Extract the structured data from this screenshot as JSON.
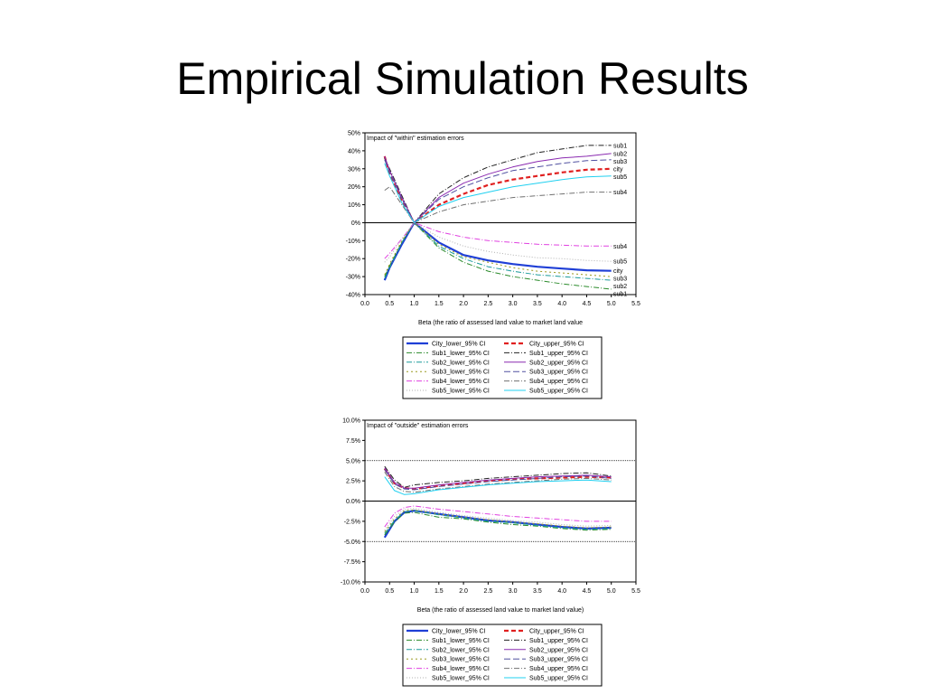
{
  "slide": {
    "title": "Empirical Simulation Results"
  },
  "chart_data": [
    {
      "type": "line",
      "title": "Impact of \"within\" estimation errors",
      "xlabel": "Beta (the ratio of assessed land value to market land value",
      "ylabel": "",
      "xlim": [
        0.0,
        5.5
      ],
      "ylim": [
        -0.4,
        0.5
      ],
      "x_ticks": [
        "0.0",
        "0.5",
        "1.0",
        "1.5",
        "2.0",
        "2.5",
        "3.0",
        "3.5",
        "4.0",
        "4.5",
        "5.0",
        "5.5"
      ],
      "y_ticks": [
        "50%",
        "40%",
        "30%",
        "20%",
        "10%",
        "0%",
        "-10%",
        "-20%",
        "-30%",
        "-40%"
      ],
      "ref_lines": [
        0
      ],
      "series": [
        {
          "name": "City_lower_95% CI",
          "color": "#1f3fd6",
          "dash": "",
          "width": 2.2,
          "x": [
            0.4,
            0.5,
            0.75,
            1.0,
            1.5,
            2.0,
            2.5,
            3.0,
            3.5,
            4.0,
            4.5,
            5.0
          ],
          "y": [
            -0.32,
            -0.25,
            -0.12,
            0.0,
            -0.11,
            -0.18,
            -0.21,
            -0.23,
            -0.245,
            -0.255,
            -0.265,
            -0.268
          ],
          "end_label": "city"
        },
        {
          "name": "City_upper_95% CI",
          "color": "#e02020",
          "dash": "5,3",
          "width": 2.2,
          "x": [
            0.4,
            0.5,
            0.75,
            1.0,
            1.5,
            2.0,
            2.5,
            3.0,
            3.5,
            4.0,
            4.5,
            5.0
          ],
          "y": [
            0.37,
            0.27,
            0.12,
            0.0,
            0.1,
            0.16,
            0.21,
            0.24,
            0.26,
            0.28,
            0.295,
            0.3
          ],
          "end_label": "city"
        },
        {
          "name": "Sub1_lower_95% CI",
          "color": "#2a8a2a",
          "dash": "6,2,1,2",
          "width": 1,
          "x": [
            0.4,
            0.5,
            0.75,
            1.0,
            1.5,
            2.0,
            2.5,
            3.0,
            3.5,
            4.0,
            4.5,
            5.0
          ],
          "y": [
            -0.3,
            -0.24,
            -0.11,
            0.0,
            -0.14,
            -0.22,
            -0.27,
            -0.3,
            -0.32,
            -0.34,
            -0.355,
            -0.37
          ],
          "end_label": "sub1"
        },
        {
          "name": "Sub1_upper_95% CI",
          "color": "#222222",
          "dash": "6,2,1,2",
          "width": 1,
          "x": [
            0.4,
            0.5,
            0.75,
            1.0,
            1.5,
            2.0,
            2.5,
            3.0,
            3.5,
            4.0,
            4.5,
            5.0
          ],
          "y": [
            0.36,
            0.3,
            0.15,
            0.0,
            0.16,
            0.25,
            0.31,
            0.35,
            0.39,
            0.41,
            0.43,
            0.43
          ],
          "end_label": "sub1"
        },
        {
          "name": "Sub2_lower_95% CI",
          "color": "#1a9a9a",
          "dash": "6,2,1,2",
          "width": 1,
          "x": [
            0.4,
            0.5,
            0.75,
            1.0,
            1.5,
            2.0,
            2.5,
            3.0,
            3.5,
            4.0,
            4.5,
            5.0
          ],
          "y": [
            -0.31,
            -0.25,
            -0.11,
            0.0,
            -0.13,
            -0.2,
            -0.245,
            -0.27,
            -0.29,
            -0.3,
            -0.31,
            -0.32
          ],
          "end_label": "sub2"
        },
        {
          "name": "Sub2_upper_95% CI",
          "color": "#8a2ab0",
          "dash": "",
          "width": 1,
          "x": [
            0.4,
            0.5,
            0.75,
            1.0,
            1.5,
            2.0,
            2.5,
            3.0,
            3.5,
            4.0,
            4.5,
            5.0
          ],
          "y": [
            0.37,
            0.29,
            0.14,
            0.0,
            0.14,
            0.22,
            0.27,
            0.31,
            0.34,
            0.36,
            0.37,
            0.385
          ],
          "end_label": "sub2"
        },
        {
          "name": "Sub3_lower_95% CI",
          "color": "#9a9a20",
          "dash": "2,3",
          "width": 1,
          "x": [
            0.4,
            0.5,
            0.75,
            1.0,
            1.5,
            2.0,
            2.5,
            3.0,
            3.5,
            4.0,
            4.5,
            5.0
          ],
          "y": [
            -0.29,
            -0.23,
            -0.1,
            0.0,
            -0.12,
            -0.19,
            -0.22,
            -0.25,
            -0.27,
            -0.28,
            -0.29,
            -0.3
          ],
          "end_label": "sub3"
        },
        {
          "name": "Sub3_upper_95% CI",
          "color": "#5050a0",
          "dash": "7,3",
          "width": 1,
          "x": [
            0.4,
            0.5,
            0.75,
            1.0,
            1.5,
            2.0,
            2.5,
            3.0,
            3.5,
            4.0,
            4.5,
            5.0
          ],
          "y": [
            0.35,
            0.28,
            0.13,
            0.0,
            0.13,
            0.2,
            0.25,
            0.29,
            0.31,
            0.33,
            0.345,
            0.35
          ],
          "end_label": "sub3"
        },
        {
          "name": "Sub4_lower_95% CI",
          "color": "#e040e0",
          "dash": "6,2,1,2",
          "width": 1,
          "x": [
            0.4,
            0.5,
            0.75,
            1.0,
            1.5,
            2.0,
            2.5,
            3.0,
            3.5,
            4.0,
            4.5,
            5.0
          ],
          "y": [
            -0.2,
            -0.17,
            -0.09,
            0.0,
            -0.05,
            -0.08,
            -0.1,
            -0.11,
            -0.12,
            -0.125,
            -0.13,
            -0.13
          ],
          "end_label": "sub4"
        },
        {
          "name": "Sub4_upper_95% CI",
          "color": "#707070",
          "dash": "6,2,1,2",
          "width": 1,
          "x": [
            0.4,
            0.5,
            0.75,
            1.0,
            1.5,
            2.0,
            2.5,
            3.0,
            3.5,
            4.0,
            4.5,
            5.0
          ],
          "y": [
            0.18,
            0.2,
            0.1,
            0.0,
            0.06,
            0.1,
            0.12,
            0.14,
            0.15,
            0.16,
            0.17,
            0.17
          ],
          "end_label": "sub4"
        },
        {
          "name": "Sub5_lower_95% CI",
          "color": "#b0b0b0",
          "dash": "1,2",
          "width": 1,
          "x": [
            0.4,
            0.5,
            0.75,
            1.0,
            1.5,
            2.0,
            2.5,
            3.0,
            3.5,
            4.0,
            4.5,
            5.0
          ],
          "y": [
            -0.22,
            -0.19,
            -0.09,
            0.0,
            -0.08,
            -0.13,
            -0.16,
            -0.18,
            -0.195,
            -0.2,
            -0.21,
            -0.215
          ],
          "end_label": "sub5"
        },
        {
          "name": "Sub5_upper_95% CI",
          "color": "#20d0f0",
          "dash": "",
          "width": 1,
          "x": [
            0.4,
            0.5,
            0.75,
            1.0,
            1.5,
            2.0,
            2.5,
            3.0,
            3.5,
            4.0,
            4.5,
            5.0
          ],
          "y": [
            0.33,
            0.26,
            0.11,
            0.0,
            0.09,
            0.14,
            0.17,
            0.2,
            0.22,
            0.24,
            0.255,
            0.26
          ],
          "end_label": "sub5"
        }
      ]
    },
    {
      "type": "line",
      "title": "Impact of \"outside\" estimation errors",
      "xlabel": "Beta (the ratio of assessed land value to market land value)",
      "ylabel": "",
      "xlim": [
        0.0,
        5.5
      ],
      "ylim": [
        -0.1,
        0.1
      ],
      "x_ticks": [
        "0.0",
        "0.5",
        "1.0",
        "1.5",
        "2.0",
        "2.5",
        "3.0",
        "3.5",
        "4.0",
        "4.5",
        "5.0",
        "5.5"
      ],
      "y_ticks": [
        "10.0%",
        "7.5%",
        "5.0%",
        "2.5%",
        "0.0%",
        "-2.5%",
        "-5.0%",
        "-7.5%",
        "-10.0%"
      ],
      "ref_lines": [
        0.05,
        0,
        -0.05
      ],
      "series": [
        {
          "name": "City_lower_95% CI",
          "color": "#1f3fd6",
          "dash": "",
          "width": 2.2,
          "x": [
            0.4,
            0.6,
            0.8,
            1.0,
            1.5,
            2.0,
            2.5,
            3.0,
            3.5,
            4.0,
            4.5,
            5.0
          ],
          "y": [
            -0.045,
            -0.025,
            -0.014,
            -0.012,
            -0.016,
            -0.02,
            -0.024,
            -0.026,
            -0.029,
            -0.032,
            -0.034,
            -0.033
          ]
        },
        {
          "name": "City_upper_95% CI",
          "color": "#e02020",
          "dash": "5,3",
          "width": 2.2,
          "x": [
            0.4,
            0.6,
            0.8,
            1.0,
            1.5,
            2.0,
            2.5,
            3.0,
            3.5,
            4.0,
            4.5,
            5.0
          ],
          "y": [
            0.04,
            0.022,
            0.016,
            0.015,
            0.019,
            0.022,
            0.025,
            0.027,
            0.028,
            0.029,
            0.03,
            0.029
          ]
        },
        {
          "name": "Sub1_lower_95% CI",
          "color": "#2a8a2a",
          "dash": "6,2,1,2",
          "width": 1,
          "x": [
            0.4,
            0.6,
            0.8,
            1.0,
            1.5,
            2.0,
            2.5,
            3.0,
            3.5,
            4.0,
            4.5,
            5.0
          ],
          "y": [
            -0.042,
            -0.026,
            -0.015,
            -0.014,
            -0.02,
            -0.022,
            -0.026,
            -0.029,
            -0.031,
            -0.034,
            -0.036,
            -0.035
          ]
        },
        {
          "name": "Sub1_upper_95% CI",
          "color": "#222222",
          "dash": "6,2,1,2",
          "width": 1,
          "x": [
            0.4,
            0.6,
            0.8,
            1.0,
            1.5,
            2.0,
            2.5,
            3.0,
            3.5,
            4.0,
            4.5,
            5.0
          ],
          "y": [
            0.043,
            0.026,
            0.017,
            0.02,
            0.023,
            0.025,
            0.028,
            0.03,
            0.032,
            0.034,
            0.035,
            0.031
          ]
        },
        {
          "name": "Sub2_lower_95% CI",
          "color": "#1a9a9a",
          "dash": "6,2,1,2",
          "width": 1,
          "x": [
            0.4,
            0.6,
            0.8,
            1.0,
            1.5,
            2.0,
            2.5,
            3.0,
            3.5,
            4.0,
            4.5,
            5.0
          ],
          "y": [
            -0.04,
            -0.024,
            -0.013,
            -0.012,
            -0.017,
            -0.021,
            -0.025,
            -0.027,
            -0.03,
            -0.033,
            -0.035,
            -0.034
          ]
        },
        {
          "name": "Sub2_upper_95% CI",
          "color": "#8a2ab0",
          "dash": "",
          "width": 1,
          "x": [
            0.4,
            0.6,
            0.8,
            1.0,
            1.5,
            2.0,
            2.5,
            3.0,
            3.5,
            4.0,
            4.5,
            5.0
          ],
          "y": [
            0.041,
            0.023,
            0.016,
            0.016,
            0.02,
            0.023,
            0.026,
            0.028,
            0.03,
            0.031,
            0.032,
            0.03
          ]
        },
        {
          "name": "Sub3_lower_95% CI",
          "color": "#9a9a20",
          "dash": "2,3",
          "width": 1,
          "x": [
            0.4,
            0.6,
            0.8,
            1.0,
            1.5,
            2.0,
            2.5,
            3.0,
            3.5,
            4.0,
            4.5,
            5.0
          ],
          "y": [
            -0.038,
            -0.022,
            -0.012,
            -0.011,
            -0.016,
            -0.02,
            -0.023,
            -0.026,
            -0.028,
            -0.031,
            -0.033,
            -0.032
          ]
        },
        {
          "name": "Sub3_upper_95% CI",
          "color": "#5050a0",
          "dash": "7,3",
          "width": 1,
          "x": [
            0.4,
            0.6,
            0.8,
            1.0,
            1.5,
            2.0,
            2.5,
            3.0,
            3.5,
            4.0,
            4.5,
            5.0
          ],
          "y": [
            0.039,
            0.021,
            0.015,
            0.014,
            0.018,
            0.021,
            0.024,
            0.026,
            0.028,
            0.03,
            0.031,
            0.028
          ]
        },
        {
          "name": "Sub4_lower_95% CI",
          "color": "#e040e0",
          "dash": "6,2,1,2",
          "width": 1,
          "x": [
            0.4,
            0.6,
            0.8,
            1.0,
            1.5,
            2.0,
            2.5,
            3.0,
            3.5,
            4.0,
            4.5,
            5.0
          ],
          "y": [
            -0.032,
            -0.015,
            -0.008,
            -0.006,
            -0.01,
            -0.013,
            -0.016,
            -0.019,
            -0.021,
            -0.023,
            -0.025,
            -0.025
          ]
        },
        {
          "name": "Sub4_upper_95% CI",
          "color": "#707070",
          "dash": "6,2,1,2",
          "width": 1,
          "x": [
            0.4,
            0.6,
            0.8,
            1.0,
            1.5,
            2.0,
            2.5,
            3.0,
            3.5,
            4.0,
            4.5,
            5.0
          ],
          "y": [
            0.036,
            0.018,
            0.012,
            0.011,
            0.015,
            0.018,
            0.021,
            0.023,
            0.025,
            0.027,
            0.028,
            0.026
          ]
        },
        {
          "name": "Sub5_lower_95% CI",
          "color": "#b0b0b0",
          "dash": "1,2",
          "width": 1,
          "x": [
            0.4,
            0.6,
            0.8,
            1.0,
            1.5,
            2.0,
            2.5,
            3.0,
            3.5,
            4.0,
            4.5,
            5.0
          ],
          "y": [
            -0.036,
            -0.019,
            -0.01,
            -0.009,
            -0.014,
            -0.018,
            -0.021,
            -0.024,
            -0.026,
            -0.029,
            -0.031,
            -0.03
          ]
        },
        {
          "name": "Sub5_upper_95% CI",
          "color": "#20d0f0",
          "dash": "",
          "width": 1,
          "x": [
            0.4,
            0.6,
            0.8,
            1.0,
            1.5,
            2.0,
            2.5,
            3.0,
            3.5,
            4.0,
            4.5,
            5.0
          ],
          "y": [
            0.03,
            0.013,
            0.008,
            0.009,
            0.014,
            0.017,
            0.02,
            0.022,
            0.024,
            0.025,
            0.026,
            0.024
          ]
        }
      ]
    }
  ]
}
